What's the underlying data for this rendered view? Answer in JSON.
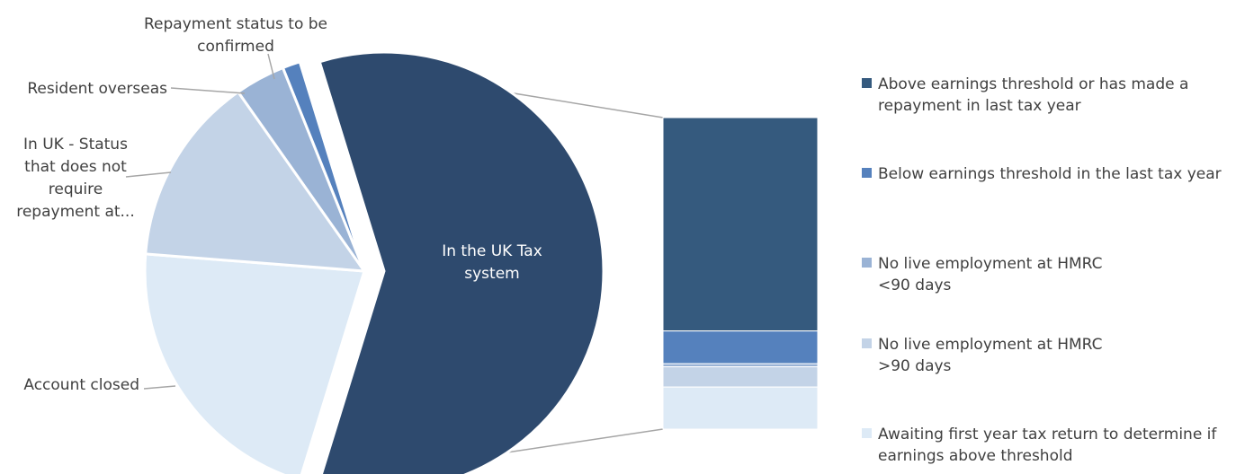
{
  "chart_data": {
    "type": "pie",
    "subtype": "bar-of-pie",
    "pie": {
      "slices": [
        {
          "label": "In the UK Tax system",
          "value": 59.5,
          "color": "#2e4a6e",
          "exploded": true,
          "label_inside": true
        },
        {
          "label": "Account closed",
          "value": 21.5,
          "color": "#ddeaf6"
        },
        {
          "label": "In UK - Status that does not require repayment at...",
          "label_lines": [
            "In UK - Status",
            "that does not",
            "require",
            "repayment at..."
          ],
          "value": 14.0,
          "color": "#c3d3e7"
        },
        {
          "label": "Resident overseas",
          "value": 3.7,
          "color": "#9ab3d5"
        },
        {
          "label": "Repayment status to be confirmed",
          "label_lines": [
            "Repayment status to be",
            "confirmed"
          ],
          "value": 1.3,
          "color": "#5581bd"
        }
      ]
    },
    "bar": {
      "segments": [
        {
          "label": "Above earnings threshold or has made a repayment in last tax year",
          "value": 68.5,
          "color": "#355a7e"
        },
        {
          "label": "Below earnings threshold in the last tax year",
          "value": 10.5,
          "color": "#5581bd"
        },
        {
          "label": "No live employment at HMRC <90 days",
          "value": 1.0,
          "color": "#9ab3d5"
        },
        {
          "label": "No live employment at HMRC >90 days",
          "value": 6.5,
          "color": "#c3d3e7"
        },
        {
          "label": "Awaiting first year tax return to determine if earnings above threshold",
          "value": 13.5,
          "color": "#ddeaf6"
        }
      ]
    },
    "legend": {
      "position": "right",
      "items": [
        {
          "lines": [
            "Above earnings threshold or has made a",
            "repayment in last tax year"
          ],
          "color": "#355a7e"
        },
        {
          "lines": [
            "Below earnings threshold in the last tax year"
          ],
          "color": "#5581bd"
        },
        {
          "lines": [
            "No live employment at HMRC",
            "<90 days"
          ],
          "color": "#9ab3d5"
        },
        {
          "lines": [
            "No live employment at HMRC",
            ">90 days"
          ],
          "color": "#c3d3e7"
        },
        {
          "lines": [
            "Awaiting first year tax return to determine if",
            "earnings above threshold"
          ],
          "color": "#ddeaf6"
        }
      ]
    }
  }
}
